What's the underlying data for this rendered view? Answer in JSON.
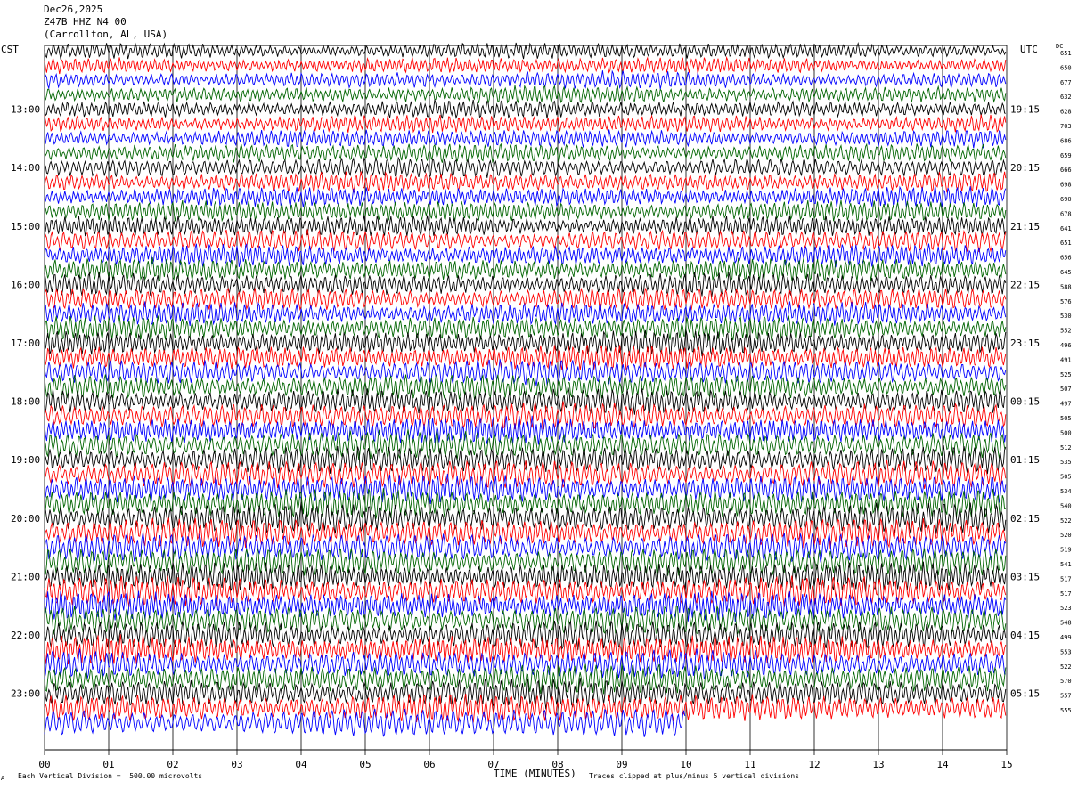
{
  "header": {
    "date": "Dec26,2025",
    "station": "Z47B HHZ N4 00",
    "location": "(Carrollton, AL, USA)"
  },
  "timezone_left": "CST",
  "timezone_right": "UTC",
  "dc_label": "DC",
  "footer": {
    "corner_mark": "A",
    "division_note": "Each Vertical Division =  500.00 microvolts",
    "clip_note": "Traces clipped at plus/minus 5 vertical divisions"
  },
  "colors": {
    "trace_cycle": [
      "#000000",
      "#ff0000",
      "#0000ff",
      "#006400"
    ],
    "grid": "#000000",
    "background": "#ffffff"
  },
  "chart_data": {
    "type": "line",
    "title": "",
    "xlabel": "TIME (MINUTES)",
    "ylabel": "",
    "xlim": [
      0,
      15
    ],
    "x_ticks": [
      "00",
      "01",
      "02",
      "03",
      "04",
      "05",
      "06",
      "07",
      "08",
      "09",
      "10",
      "11",
      "12",
      "13",
      "14",
      "15"
    ],
    "y_left_labels": [
      "13:00",
      "14:00",
      "15:00",
      "16:00",
      "17:00",
      "18:00",
      "19:00",
      "20:00",
      "21:00",
      "22:00",
      "23:00"
    ],
    "y_right_labels": [
      "19:15",
      "20:15",
      "21:15",
      "22:15",
      "23:15",
      "00:15",
      "01:15",
      "02:15",
      "03:15",
      "04:15",
      "05:15"
    ],
    "grid": true,
    "traces_per_hour": 4,
    "trace_count": 47,
    "last_trace_end_minute": 10,
    "dc_offsets": [
      "651",
      "650",
      "677",
      "632",
      "628",
      "703",
      "686",
      "659",
      "666",
      "698",
      "690",
      "678",
      "641",
      "651",
      "656",
      "645",
      "588",
      "576",
      "530",
      "552",
      "496",
      "491",
      "525",
      "507",
      "497",
      "505",
      "500",
      "512",
      "535",
      "505",
      "534",
      "540",
      "522",
      "520",
      "519",
      "541",
      "517",
      "517",
      "523",
      "548",
      "499",
      "553",
      "522",
      "570",
      "557",
      "555"
    ]
  }
}
